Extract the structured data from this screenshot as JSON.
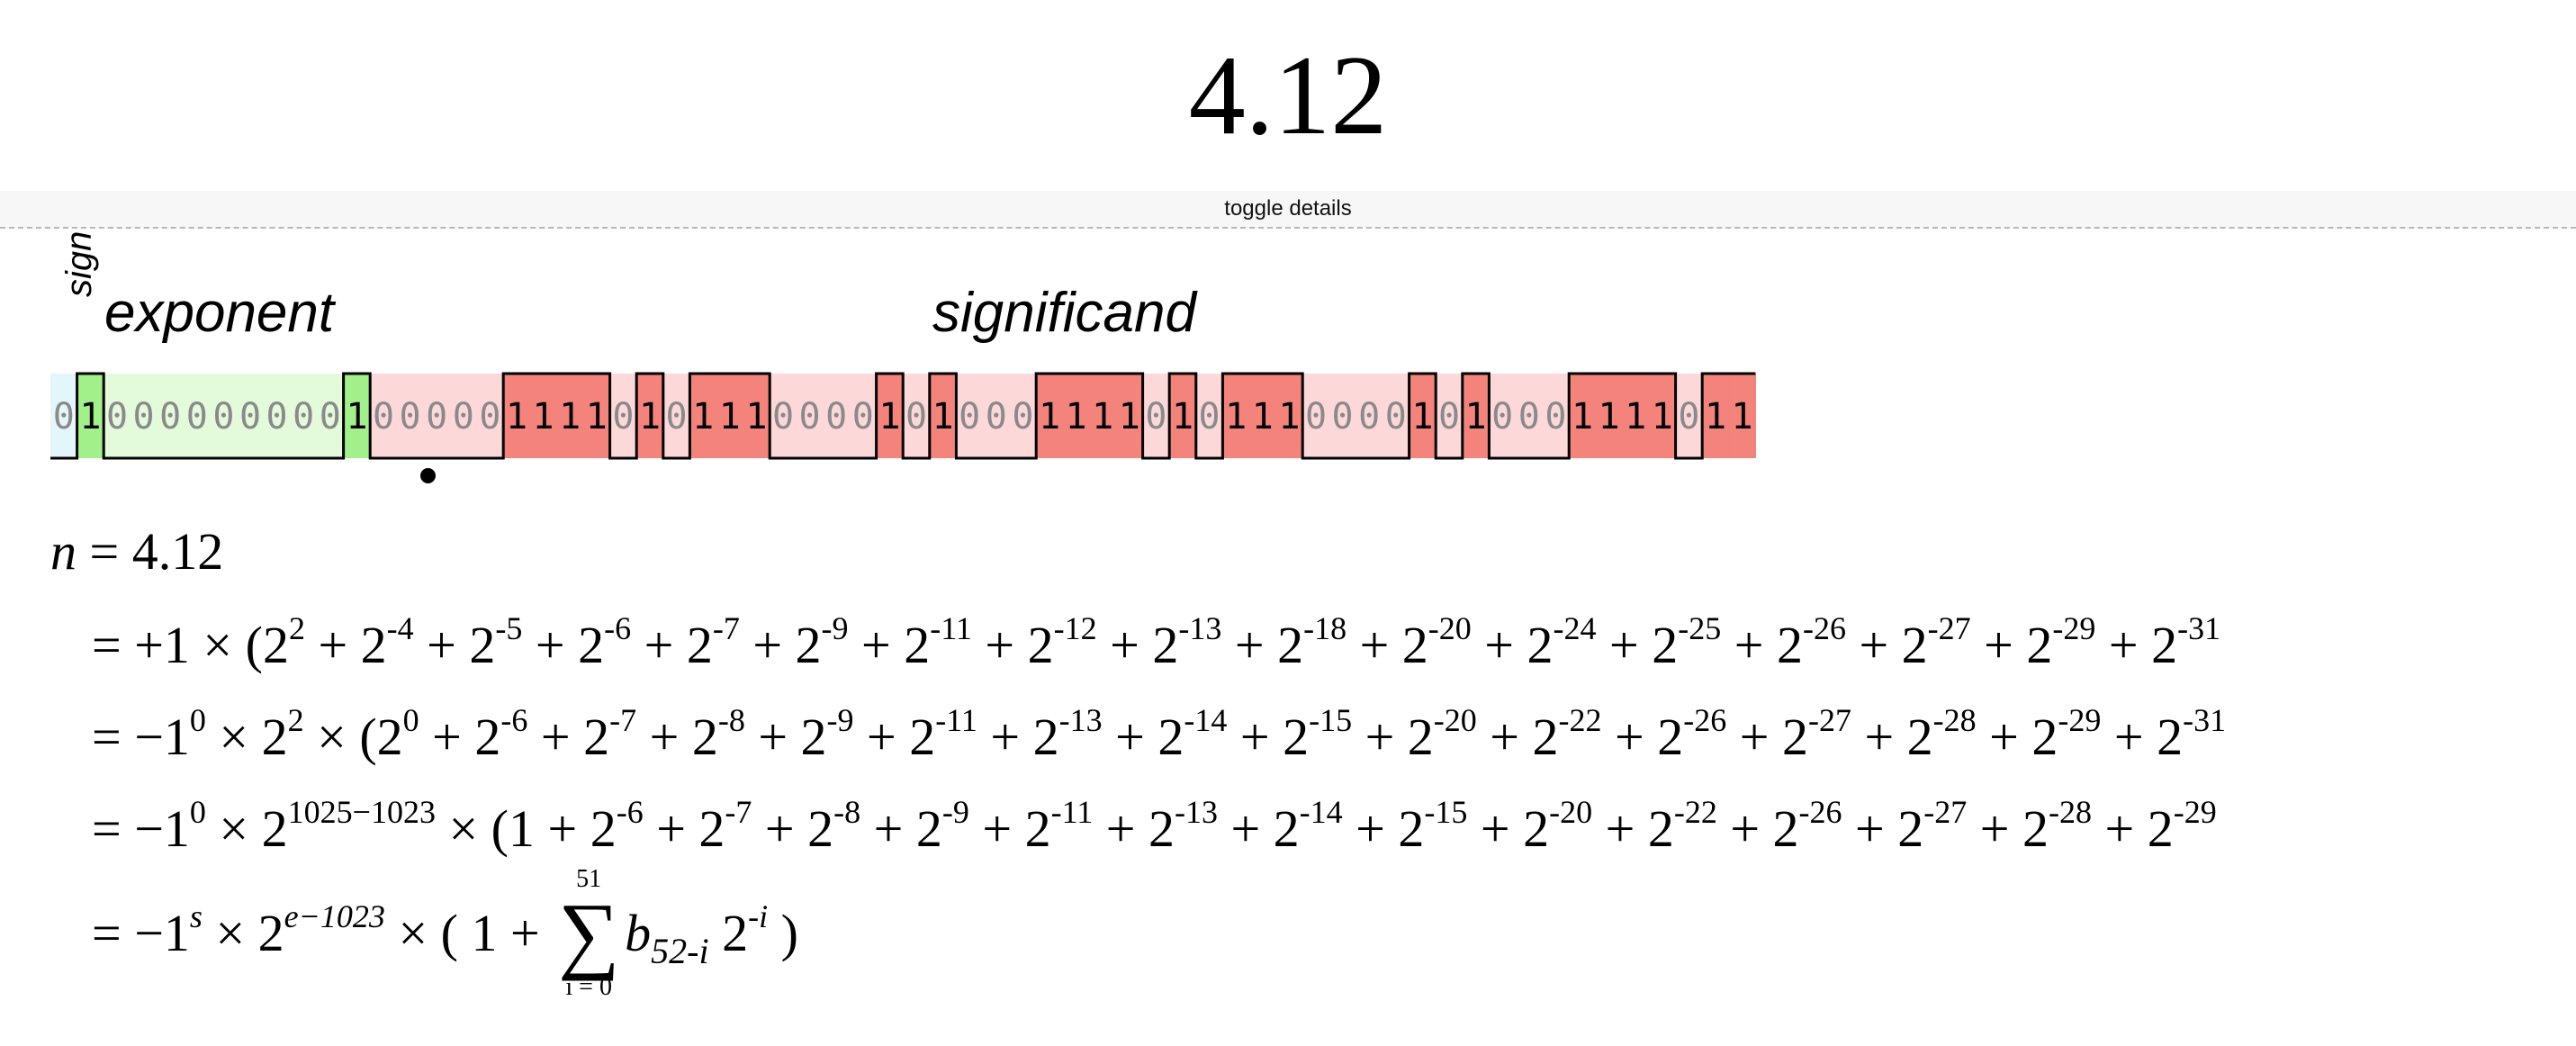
{
  "title": "4.12",
  "toggle": {
    "label": "toggle details"
  },
  "labels": {
    "sign": "sign",
    "exponent": "exponent",
    "significand": "significand"
  },
  "bits": "0100000000010000011110101110000101000111101011100001010001111011",
  "colors": {
    "sign": "#e2f6fb",
    "exponent_light": "#e3fadb",
    "exponent_dark": "#a2f08a",
    "significand_light": "#fdd8d8",
    "significand_dark": "#f4837c",
    "zero_text": "#8a8a8a",
    "one_text": "#000000"
  },
  "equations": {
    "n": {
      "var": "n",
      "value": "= 4.12"
    },
    "line1": {
      "prefix": "= +1 × (2",
      "first_exp": "2",
      "terms": [
        "-4",
        "-5",
        "-6",
        "-7",
        "-9",
        "-11",
        "-12",
        "-13",
        "-18",
        "-20",
        "-24",
        "-25",
        "-26",
        "-27",
        "-29",
        "-31"
      ]
    },
    "line2": {
      "prefix": "= −1",
      "sign_exp": "0",
      "mid": " × 2",
      "scale_exp": "2",
      "mid2": " × (2",
      "first_exp": "0",
      "terms": [
        "-6",
        "-7",
        "-8",
        "-9",
        "-11",
        "-13",
        "-14",
        "-15",
        "-20",
        "-22",
        "-26",
        "-27",
        "-28",
        "-29",
        "-31"
      ]
    },
    "line3": {
      "prefix": "= −1",
      "sign_exp": "0",
      "mid": " × 2",
      "scale_exp": "1025−1023",
      "mid2": " × (1",
      "terms": [
        "-6",
        "-7",
        "-8",
        "-9",
        "-11",
        "-13",
        "-14",
        "-15",
        "-20",
        "-22",
        "-26",
        "-27",
        "-28",
        "-29"
      ]
    },
    "line4": {
      "prefix": "= −1",
      "sign_exp": "s",
      "mid": " × 2",
      "scale_exp": "e−1023",
      "mid2": " × ( 1 + ",
      "sum_upper": "51",
      "sum_lower": "i = 0",
      "b": "b",
      "b_sub": "52-i",
      "two": " 2",
      "two_exp": "-i",
      "close": " )"
    }
  }
}
